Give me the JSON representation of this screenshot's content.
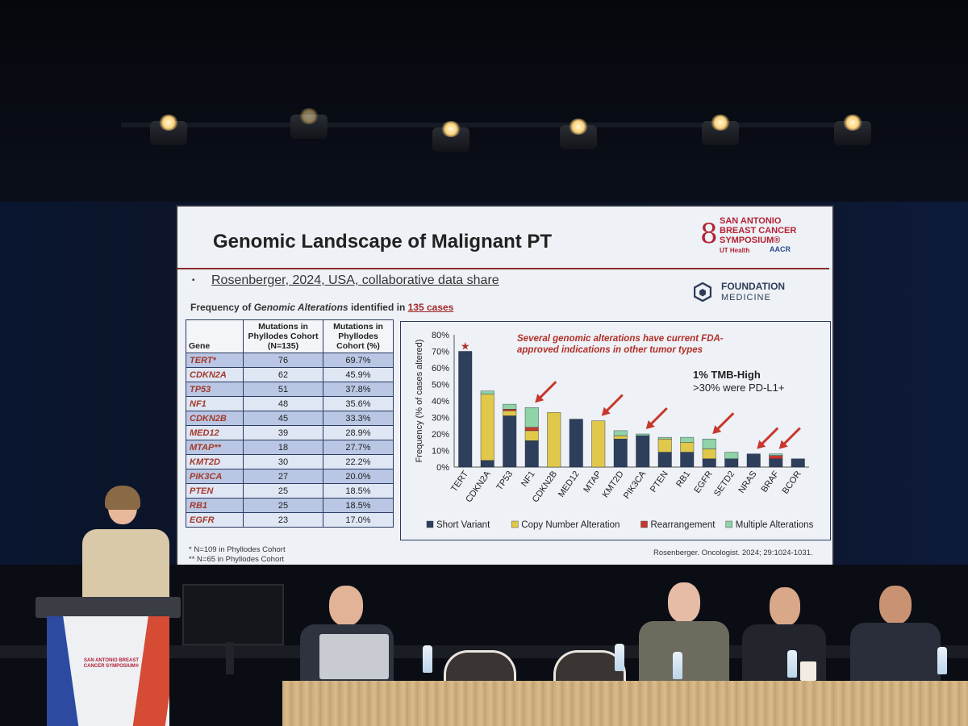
{
  "slide": {
    "title": "Genomic Landscape of Malignant PT",
    "logo_text": "SAN ANTONIO BREAST CANCER SYMPOSIUM®",
    "logo_ut": "UT Health",
    "logo_aacr": "AACR",
    "bullet": "▪",
    "subtitle": "Rosenberger, 2024, USA, collaborative data share",
    "foundation_line1": "FOUNDATION",
    "foundation_line2": "MEDICINE",
    "freq_heading": {
      "part1": "Frequency of ",
      "part2": "Genomic Alterations",
      "part3": " identified in ",
      "part4": "135 cases"
    },
    "table": {
      "headers": [
        "Gene",
        "Mutations in Phyllodes Cohort (N=135)",
        "Mutations in Phyllodes Cohort (%)"
      ],
      "rows": [
        {
          "gene": "TERT*",
          "n": "76",
          "pct": "69.7%"
        },
        {
          "gene": "CDKN2A",
          "n": "62",
          "pct": "45.9%"
        },
        {
          "gene": "TP53",
          "n": "51",
          "pct": "37.8%"
        },
        {
          "gene": "NF1",
          "n": "48",
          "pct": "35.6%"
        },
        {
          "gene": "CDKN2B",
          "n": "45",
          "pct": "33.3%"
        },
        {
          "gene": "MED12",
          "n": "39",
          "pct": "28.9%"
        },
        {
          "gene": "MTAP**",
          "n": "18",
          "pct": "27.7%"
        },
        {
          "gene": "KMT2D",
          "n": "30",
          "pct": "22.2%"
        },
        {
          "gene": "PIK3CA",
          "n": "27",
          "pct": "20.0%"
        },
        {
          "gene": "PTEN",
          "n": "25",
          "pct": "18.5%"
        },
        {
          "gene": "RB1",
          "n": "25",
          "pct": "18.5%"
        },
        {
          "gene": "EGFR",
          "n": "23",
          "pct": "17.0%"
        }
      ]
    },
    "footnote1": "* N=109 in Phyllodes Cohort",
    "footnote2": "** N=65 in Phyllodes Cohort",
    "citation": "Rosenberger. Oncologist. 2024; 29:1024-1031.",
    "chart_note": "Several genomic alterations have current FDA-approved indications in other tumor types",
    "tmb_line1": "1% TMB-High",
    "tmb_line2": ">30% were PD-L1+"
  },
  "chart_data": {
    "type": "bar",
    "stacked": true,
    "ylabel": "Frequency (% of cases altered)",
    "ylim": [
      0,
      80
    ],
    "yticks": [
      "0%",
      "10%",
      "20%",
      "30%",
      "40%",
      "50%",
      "60%",
      "70%",
      "80%"
    ],
    "categories": [
      "TERT",
      "CDKN2A",
      "TP53",
      "NF1",
      "CDKN2B",
      "MED12",
      "MTAP",
      "KMT2D",
      "PIK3CA",
      "PTEN",
      "RB1",
      "EGFR",
      "SETD2",
      "NRAS",
      "BRAF",
      "BCOR"
    ],
    "series": [
      {
        "name": "Short Variant",
        "color": "#2e3f5c",
        "values": [
          70,
          4,
          31,
          16,
          0,
          29,
          0,
          17,
          19,
          9,
          9,
          5,
          5,
          8,
          5,
          5
        ]
      },
      {
        "name": "Copy Number Alteration",
        "color": "#e0c84a",
        "values": [
          0,
          40,
          3,
          6,
          33,
          0,
          28,
          2,
          0,
          8,
          6,
          6,
          0,
          0,
          0,
          0
        ]
      },
      {
        "name": "Rearrangement",
        "color": "#c8372d",
        "values": [
          0,
          0,
          1,
          2,
          0,
          0,
          0,
          0,
          0,
          0,
          0,
          0,
          0,
          0,
          2,
          0
        ]
      },
      {
        "name": "Multiple Alterations",
        "color": "#8fd3a6",
        "values": [
          0,
          2,
          3,
          12,
          0,
          0,
          0,
          3,
          1,
          1,
          3,
          6,
          4,
          0,
          1,
          0
        ]
      }
    ],
    "star_on": "TERT",
    "arrows_on": [
      "NF1",
      "MTAP",
      "PIK3CA",
      "EGFR",
      "NRAS",
      "BRAF"
    ],
    "legend_position": "bottom"
  }
}
